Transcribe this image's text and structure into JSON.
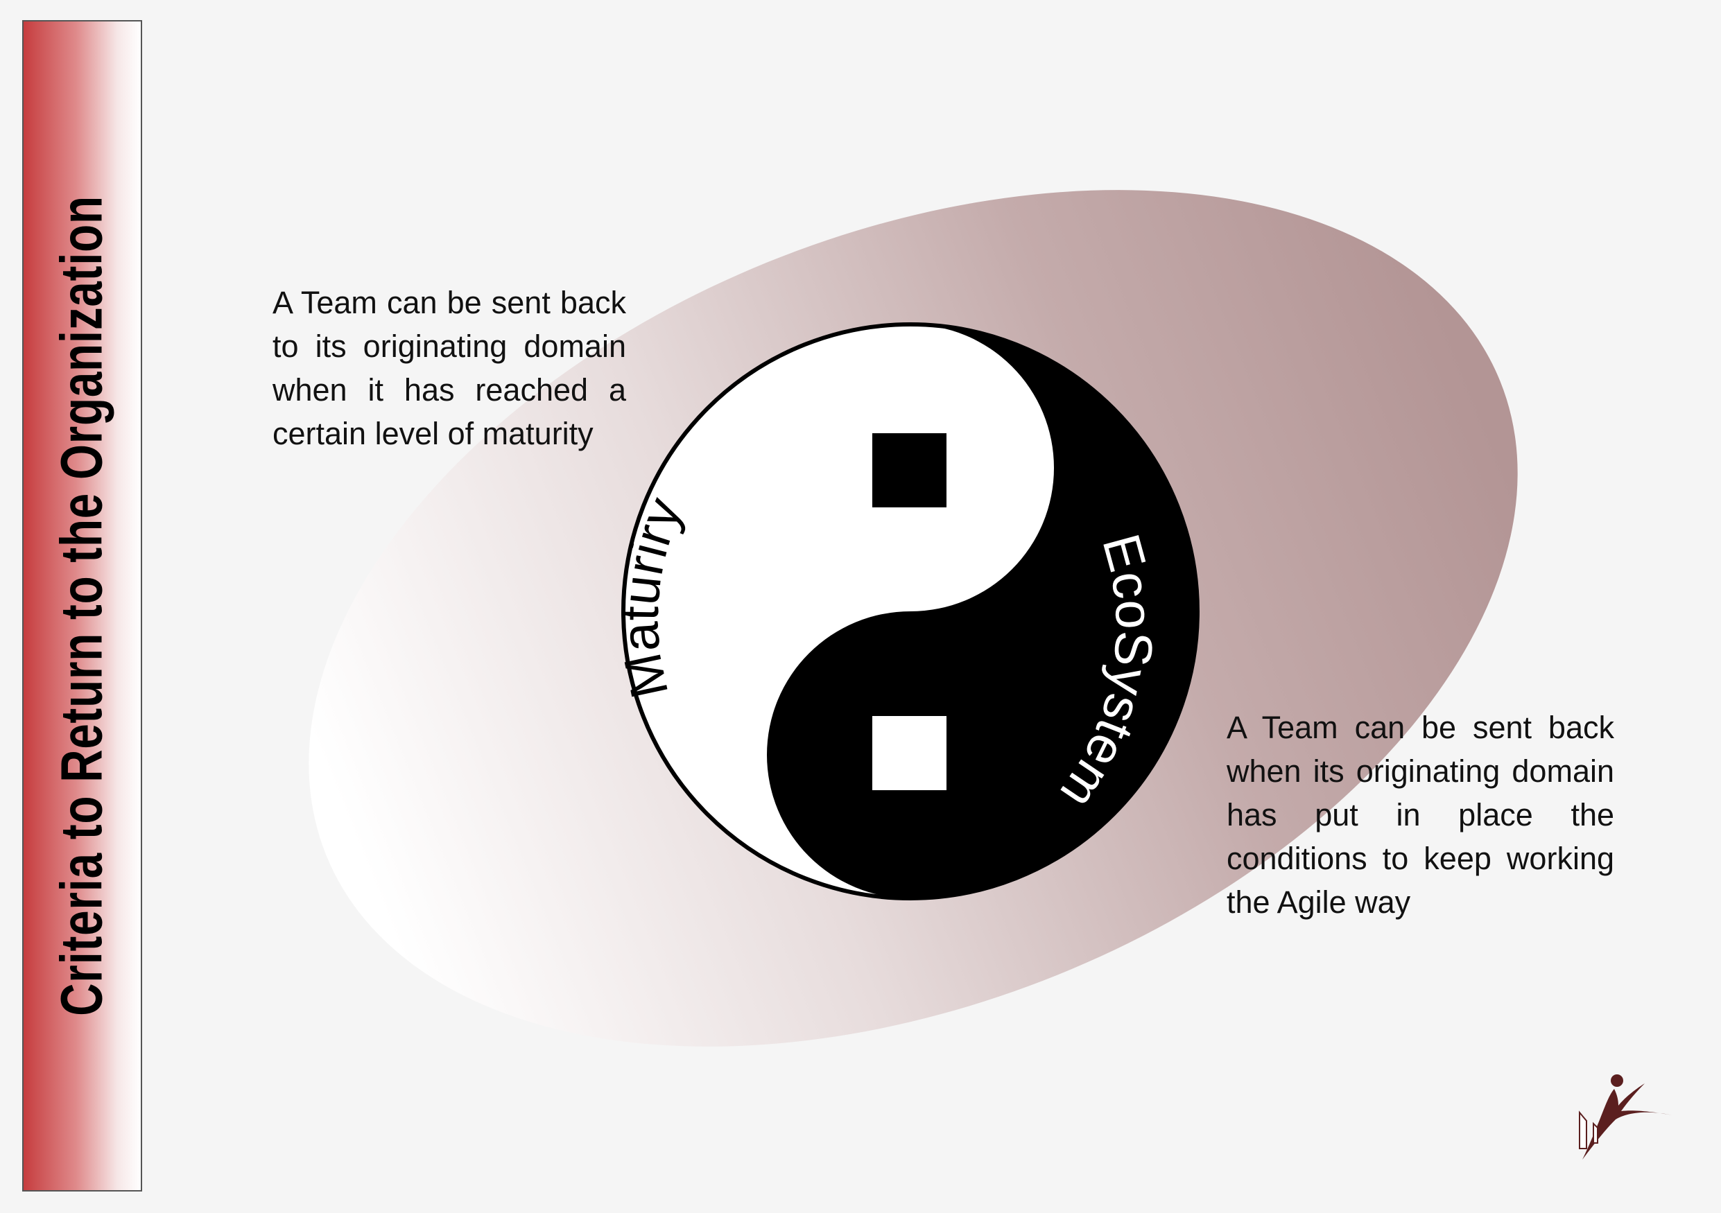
{
  "title": "Criteria to Return to the Organization",
  "left_text": [
    "A Team can be sent back",
    "to its originating domain",
    "when it has reached a",
    "certain level of maturity"
  ],
  "right_text": [
    "A Team can be sent back",
    "when its originating domain",
    "has put in place the",
    "conditions to keep working",
    "the Agile way"
  ],
  "yin_yang": {
    "white_label": "Maturiry",
    "black_label": "EcoSystem"
  },
  "colors": {
    "band_red": "#c63d3f",
    "ellipse_dark": "#b39797",
    "logo": "#5b1f1f"
  }
}
